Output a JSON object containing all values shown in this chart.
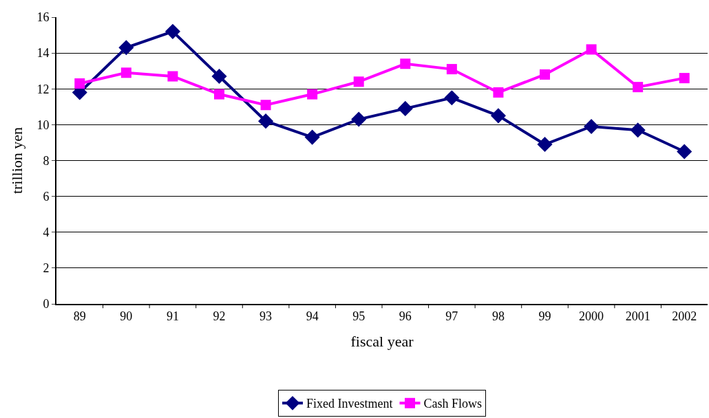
{
  "chart_data": {
    "type": "line",
    "xlabel": "fiscal year",
    "ylabel": "trillion yen",
    "categories": [
      "89",
      "90",
      "91",
      "92",
      "93",
      "94",
      "95",
      "96",
      "97",
      "98",
      "99",
      "2000",
      "2001",
      "2002"
    ],
    "series": [
      {
        "name": "Fixed Investment",
        "color": "#000080",
        "marker": "diamond",
        "values": [
          11.8,
          14.3,
          15.2,
          12.7,
          10.2,
          9.3,
          10.3,
          10.9,
          11.5,
          10.5,
          8.9,
          9.9,
          9.7,
          8.5
        ]
      },
      {
        "name": "Cash Flows",
        "color": "#ff00ff",
        "marker": "square",
        "values": [
          12.3,
          12.9,
          12.7,
          11.7,
          11.1,
          11.7,
          12.4,
          13.4,
          13.1,
          11.8,
          12.8,
          14.2,
          12.1,
          12.6
        ]
      }
    ],
    "ylim": [
      0,
      16
    ],
    "yticks": [
      0,
      2,
      4,
      6,
      8,
      10,
      12,
      14,
      16
    ],
    "grid": "y",
    "legend": "bottom",
    "line_style": "solid"
  }
}
